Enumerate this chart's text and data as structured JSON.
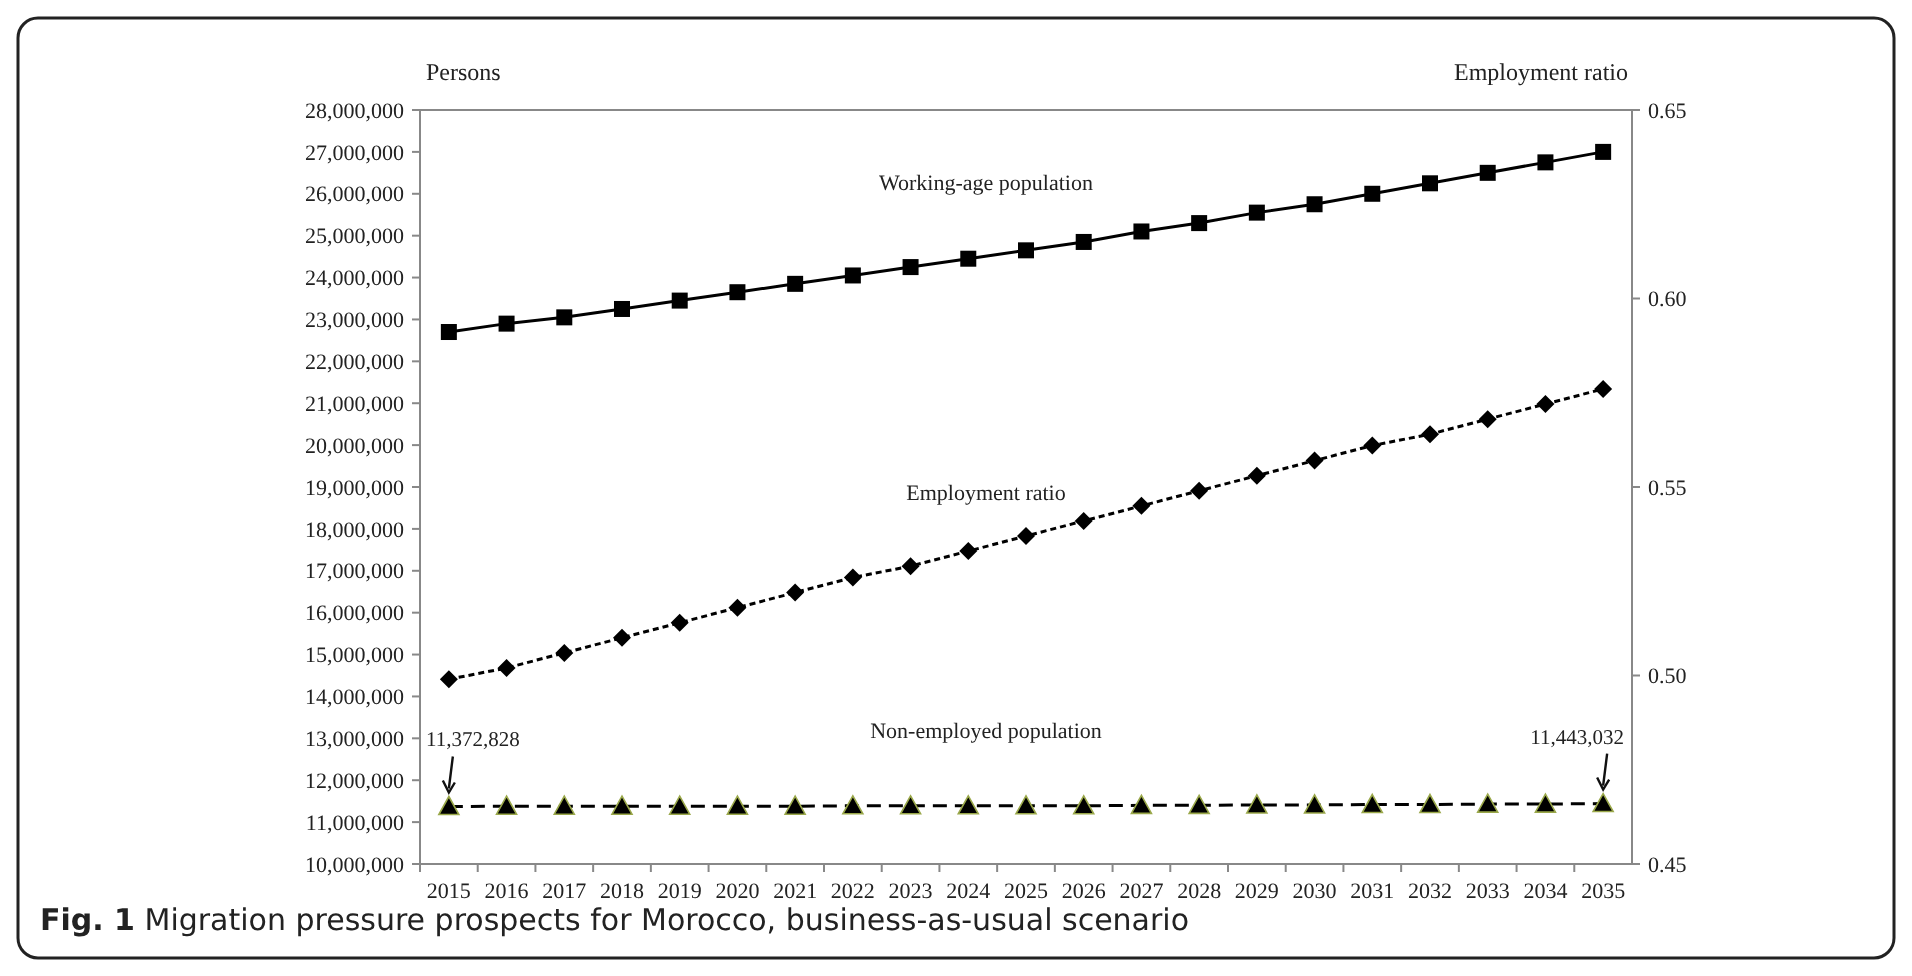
{
  "chart_data": {
    "type": "line",
    "title": "Fig. 1 Migration pressure prospects for Morocco, business-as-usual scenario",
    "ylabel": "Persons",
    "y2label": "Employment ratio",
    "categories": [
      "2015",
      "2016",
      "2017",
      "2018",
      "2019",
      "2020",
      "2021",
      "2022",
      "2023",
      "2024",
      "2025",
      "2026",
      "2027",
      "2028",
      "2029",
      "2030",
      "2031",
      "2032",
      "2033",
      "2034",
      "2035"
    ],
    "series": [
      {
        "name": "Working-age population",
        "color": "#000000",
        "marker": "square",
        "line_style": "solid",
        "values": [
          22700000,
          22900000,
          23050000,
          23250000,
          23450000,
          23650000,
          23850000,
          24050000,
          24250000,
          24450000,
          24650000,
          24850000,
          25100000,
          25300000,
          25550000,
          25750000,
          26000000,
          26250000,
          26500000,
          26750000,
          27000000
        ]
      },
      {
        "name": "Employment ratio",
        "color": "#000000",
        "marker": "diamond",
        "line_style": "dotted",
        "axis": "y2",
        "values": [
          0.499,
          0.502,
          0.506,
          0.51,
          0.514,
          0.518,
          0.522,
          0.526,
          0.529,
          0.533,
          0.537,
          0.541,
          0.545,
          0.549,
          0.553,
          0.557,
          0.561,
          0.564,
          0.568,
          0.572,
          0.576
        ]
      },
      {
        "name": "Non-employed population",
        "color": "#000000",
        "marker": "triangle",
        "line_style": "dashed",
        "values": [
          11372828,
          11380000,
          11380000,
          11380000,
          11380000,
          11380000,
          11380000,
          11390000,
          11390000,
          11390000,
          11390000,
          11390000,
          11400000,
          11400000,
          11410000,
          11410000,
          11420000,
          11420000,
          11430000,
          11430000,
          11443032
        ]
      }
    ],
    "ylim": [
      10000000,
      28000000
    ],
    "yticks": [
      {
        "value": 10000000,
        "label": "10,000,000"
      },
      {
        "value": 11000000,
        "label": "11,000,000"
      },
      {
        "value": 12000000,
        "label": "12,000,000"
      },
      {
        "value": 13000000,
        "label": "13,000,000"
      },
      {
        "value": 14000000,
        "label": "14,000,000"
      },
      {
        "value": 15000000,
        "label": "15,000,000"
      },
      {
        "value": 16000000,
        "label": "16,000,000"
      },
      {
        "value": 17000000,
        "label": "17,000,000"
      },
      {
        "value": 18000000,
        "label": "18,000,000"
      },
      {
        "value": 19000000,
        "label": "19,000,000"
      },
      {
        "value": 20000000,
        "label": "20,000,000"
      },
      {
        "value": 21000000,
        "label": "21,000,000"
      },
      {
        "value": 22000000,
        "label": "22,000,000"
      },
      {
        "value": 23000000,
        "label": "23,000,000"
      },
      {
        "value": 24000000,
        "label": "24,000,000"
      },
      {
        "value": 25000000,
        "label": "25,000,000"
      },
      {
        "value": 26000000,
        "label": "26,000,000"
      },
      {
        "value": 27000000,
        "label": "27,000,000"
      },
      {
        "value": 28000000,
        "label": "28,000,000"
      }
    ],
    "y2lim": [
      0.45,
      0.65
    ],
    "y2ticks": [
      {
        "value": 0.45,
        "label": "0.45"
      },
      {
        "value": 0.5,
        "label": "0.50"
      },
      {
        "value": 0.55,
        "label": "0.55"
      },
      {
        "value": 0.6,
        "label": "0.60"
      },
      {
        "value": 0.65,
        "label": "0.65"
      }
    ],
    "grid": false,
    "annotations": [
      {
        "text": "11,372,828",
        "x": "2015",
        "y": 11372828
      },
      {
        "text": "11,443,032",
        "x": "2035",
        "y": 11443032
      }
    ]
  }
}
